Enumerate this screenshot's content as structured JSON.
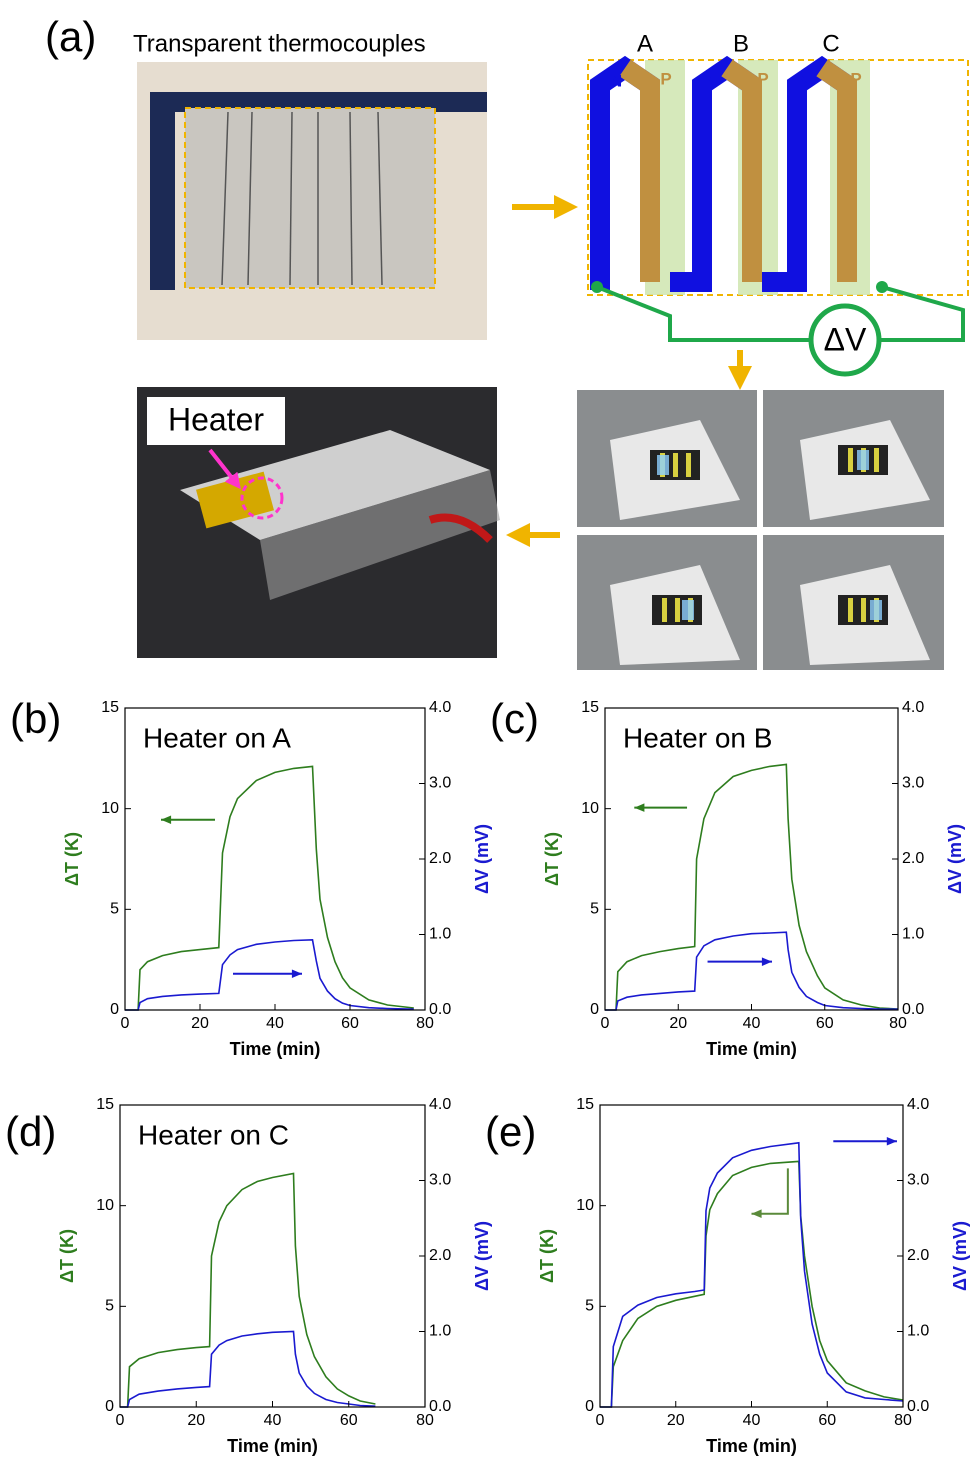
{
  "panel_a": {
    "label": "(a)",
    "photo_caption": "Transparent thermocouples",
    "columns": [
      "A",
      "B",
      "C"
    ],
    "n_label": "N",
    "p_label": "P",
    "voltmeter": "ΔV",
    "heater_label": "Heater"
  },
  "chart_data": [
    {
      "type": "line",
      "panel_label": "(b)",
      "annotation": "Heater on A",
      "x_label": "Time (min)",
      "y_label": "ΔT (K)",
      "y2_label": "ΔV (mV)",
      "xlim": [
        0,
        80
      ],
      "xticks": [
        0,
        20,
        40,
        60,
        80
      ],
      "ylim": [
        0,
        15
      ],
      "yticks": [
        0,
        5,
        10,
        15
      ],
      "y2lim": [
        0,
        4
      ],
      "y2ticks": [
        {
          "value": 0,
          "label": "0.0"
        },
        {
          "value": 1,
          "label": "1.0"
        },
        {
          "value": 2,
          "label": "2.0"
        },
        {
          "value": 3,
          "label": "3.0"
        },
        {
          "value": 4,
          "label": "4.0"
        }
      ],
      "x": [
        0,
        3.5,
        4,
        6,
        10,
        15,
        20,
        25,
        26,
        28,
        30,
        35,
        40,
        45,
        50,
        51,
        52,
        54,
        56,
        58,
        60,
        65,
        70,
        77
      ],
      "series": [
        {
          "color": "#2e7d1e",
          "values": [
            0,
            0,
            2.0,
            2.4,
            2.7,
            2.9,
            3.0,
            3.1,
            7.8,
            9.6,
            10.5,
            11.4,
            11.8,
            12.0,
            12.1,
            8.0,
            5.5,
            3.6,
            2.4,
            1.6,
            1.1,
            0.5,
            0.25,
            0.1
          ]
        },
        {
          "color": "#1a1ad0",
          "axis": "y2",
          "values": [
            0,
            0,
            0.1,
            0.15,
            0.18,
            0.2,
            0.21,
            0.22,
            0.6,
            0.73,
            0.8,
            0.87,
            0.9,
            0.92,
            0.93,
            0.65,
            0.42,
            0.25,
            0.15,
            0.09,
            0.06,
            0.03,
            0.02,
            0.01
          ]
        }
      ]
    },
    {
      "type": "line",
      "panel_label": "(c)",
      "annotation": "Heater on B",
      "x_label": "Time (min)",
      "y_label": "ΔT (K)",
      "y2_label": "ΔV (mV)",
      "xlim": [
        0,
        80
      ],
      "xticks": [
        0,
        20,
        40,
        60,
        80
      ],
      "ylim": [
        0,
        15
      ],
      "yticks": [
        0,
        5,
        10,
        15
      ],
      "y2lim": [
        0,
        4
      ],
      "y2ticks": [
        {
          "value": 0,
          "label": "0.0"
        },
        {
          "value": 1,
          "label": "1.0"
        },
        {
          "value": 2,
          "label": "2.0"
        },
        {
          "value": 3,
          "label": "3.0"
        },
        {
          "value": 4,
          "label": "4.0"
        }
      ],
      "x": [
        0,
        3,
        3.5,
        6,
        10,
        15,
        20,
        24.5,
        25,
        27,
        30,
        35,
        40,
        45,
        49.5,
        50,
        51,
        53,
        55,
        58,
        60,
        65,
        70,
        75,
        80
      ],
      "series": [
        {
          "color": "#2e7d1e",
          "values": [
            0,
            0,
            1.9,
            2.4,
            2.7,
            2.9,
            3.05,
            3.15,
            7.5,
            9.5,
            10.8,
            11.6,
            11.9,
            12.1,
            12.2,
            9.5,
            6.5,
            4.2,
            2.9,
            1.7,
            1.1,
            0.5,
            0.25,
            0.1,
            0.05
          ]
        },
        {
          "color": "#1a1ad0",
          "axis": "y2",
          "values": [
            0,
            0,
            0.12,
            0.17,
            0.2,
            0.22,
            0.24,
            0.25,
            0.7,
            0.85,
            0.93,
            0.98,
            1.01,
            1.02,
            1.03,
            0.8,
            0.5,
            0.3,
            0.18,
            0.1,
            0.06,
            0.03,
            0.02,
            0.01,
            0.01
          ]
        }
      ]
    },
    {
      "type": "line",
      "panel_label": "(d)",
      "annotation": "Heater on C",
      "x_label": "Time (min)",
      "y_label": "ΔT (K)",
      "y2_label": "ΔV (mV)",
      "xlim": [
        0,
        80
      ],
      "xticks": [
        0,
        20,
        40,
        60,
        80
      ],
      "ylim": [
        0,
        15
      ],
      "yticks": [
        0,
        5,
        10,
        15
      ],
      "y2lim": [
        0,
        4
      ],
      "y2ticks": [
        {
          "value": 0,
          "label": "0.0"
        },
        {
          "value": 1,
          "label": "1.0"
        },
        {
          "value": 2,
          "label": "2.0"
        },
        {
          "value": 3,
          "label": "3.0"
        },
        {
          "value": 4,
          "label": "4.0"
        }
      ],
      "x": [
        0,
        2,
        2.5,
        5,
        10,
        15,
        20,
        23.5,
        24,
        26,
        28,
        32,
        36,
        40,
        45.5,
        46,
        47,
        49,
        51,
        54,
        57,
        60,
        63,
        67
      ],
      "series": [
        {
          "color": "#2e7d1e",
          "values": [
            0,
            0,
            2.0,
            2.4,
            2.7,
            2.85,
            2.95,
            3.0,
            7.5,
            9.2,
            10.0,
            10.8,
            11.2,
            11.4,
            11.6,
            8.0,
            5.5,
            3.6,
            2.5,
            1.5,
            0.9,
            0.55,
            0.3,
            0.15
          ]
        },
        {
          "color": "#1a1ad0",
          "axis": "y2",
          "values": [
            0,
            0,
            0.1,
            0.17,
            0.21,
            0.24,
            0.26,
            0.27,
            0.7,
            0.82,
            0.88,
            0.94,
            0.97,
            0.99,
            1.0,
            0.7,
            0.45,
            0.28,
            0.18,
            0.1,
            0.06,
            0.04,
            0.02,
            0.01
          ]
        }
      ]
    },
    {
      "type": "line",
      "panel_label": "(e)",
      "x_label": "Time (min)",
      "y_label": "ΔT (K)",
      "y2_label": "ΔV (mV)",
      "xlim": [
        0,
        80
      ],
      "xticks": [
        0,
        20,
        40,
        60,
        80
      ],
      "ylim": [
        0,
        15
      ],
      "yticks": [
        0,
        5,
        10,
        15
      ],
      "y2lim": [
        0,
        4
      ],
      "y2ticks": [
        {
          "value": 0,
          "label": "0.0"
        },
        {
          "value": 1,
          "label": "1.0"
        },
        {
          "value": 2,
          "label": "2.0"
        },
        {
          "value": 3,
          "label": "3.0"
        },
        {
          "value": 4,
          "label": "4.0"
        }
      ],
      "x": [
        0,
        3,
        3.5,
        6,
        10,
        15,
        20,
        25,
        27.5,
        28,
        29,
        31,
        35,
        40,
        45,
        52.5,
        53,
        54,
        56,
        58,
        60,
        65,
        70,
        75,
        80
      ],
      "series": [
        {
          "color": "#2e7d1e",
          "values": [
            0,
            0,
            2.0,
            3.3,
            4.4,
            5.0,
            5.3,
            5.5,
            5.6,
            8.5,
            9.8,
            10.6,
            11.5,
            11.9,
            12.1,
            12.2,
            9.5,
            7.5,
            5.0,
            3.3,
            2.3,
            1.2,
            0.8,
            0.5,
            0.35
          ]
        },
        {
          "color": "#1a1ad0",
          "axis": "y2",
          "values": [
            0,
            0,
            0.8,
            1.2,
            1.35,
            1.45,
            1.5,
            1.53,
            1.55,
            2.6,
            2.9,
            3.1,
            3.3,
            3.4,
            3.45,
            3.5,
            2.5,
            1.8,
            1.1,
            0.7,
            0.45,
            0.2,
            0.12,
            0.1,
            0.08
          ]
        }
      ]
    }
  ]
}
